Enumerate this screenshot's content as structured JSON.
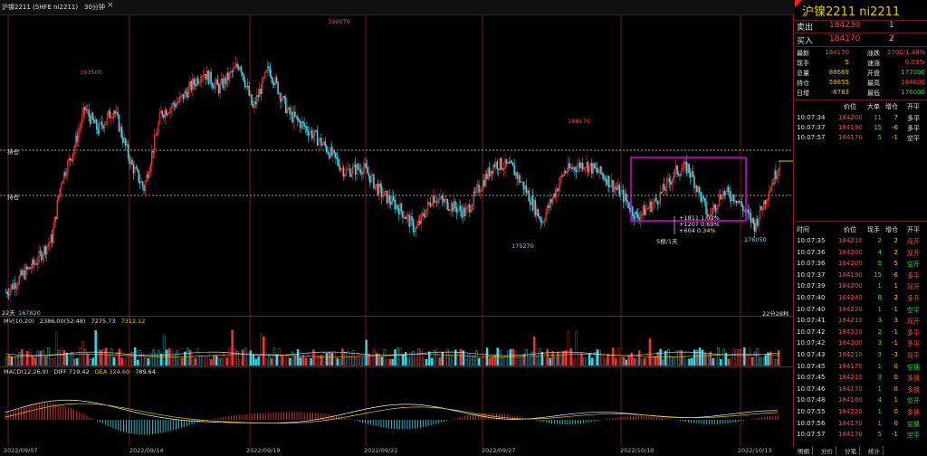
{
  "window": {
    "instrument": "沪镍2211 (SHFE ni2211)",
    "period": "30分钟",
    "close": "×"
  },
  "header": {
    "name": "沪镍2211 ni2211"
  },
  "quote": {
    "sell": {
      "label": "卖出",
      "price": "184230",
      "vol": "1"
    },
    "buy": {
      "label": "买入",
      "price": "184170",
      "vol": "2"
    },
    "stats": [
      {
        "l1": "最新",
        "v1": "184170",
        "l2": "涨跌",
        "v2": "2700/1.49%"
      },
      {
        "l1": "现手",
        "v1": "5",
        "l2": "速涨",
        "v2": "0.03%"
      },
      {
        "l1": "总量",
        "v1": "88669",
        "l2": "开盘",
        "v2": "177000"
      },
      {
        "l1": "持仓",
        "v1": "59855",
        "l2": "最高",
        "v2": "184600"
      },
      {
        "l1": "日增",
        "v1": "-8783",
        "l2": "最低",
        "v2": "176000"
      }
    ]
  },
  "big_orders": [
    {
      "time": "10:07:34",
      "price": "184200",
      "vol": "11",
      "chg": "7",
      "type": "多平"
    },
    {
      "time": "10:07:37",
      "price": "184190",
      "vol": "15",
      "chg": "-6",
      "type": "多平"
    },
    {
      "time": "10:07:57",
      "price": "184170",
      "vol": "5",
      "chg": "-1",
      "type": "空平"
    }
  ],
  "ticks_header": {
    "time": "时间",
    "price": "价位",
    "vol": "现手",
    "chg": "增仓",
    "type": "开平"
  },
  "big_header": {
    "price": "价位",
    "vol": "大单",
    "chg": "增仓",
    "type": "开平"
  },
  "ticks": [
    {
      "time": "10:07:35",
      "price": "184210",
      "vol": "2",
      "chg": "2",
      "type": "双开"
    },
    {
      "time": "10:07:36",
      "price": "184200",
      "vol": "4",
      "chg": "2",
      "type": "双开"
    },
    {
      "time": "10:07:36",
      "price": "184200",
      "vol": "5",
      "chg": "5",
      "type": "空开"
    },
    {
      "time": "10:07:37",
      "price": "184190",
      "vol": "15",
      "chg": "-6",
      "type": "多平"
    },
    {
      "time": "10:07:39",
      "price": "184200",
      "vol": "1",
      "chg": "1",
      "type": "双开"
    },
    {
      "time": "10:07:40",
      "price": "184240",
      "vol": "8",
      "chg": "2",
      "type": "多开"
    },
    {
      "time": "10:07:40",
      "price": "184220",
      "vol": "1",
      "chg": "-1",
      "type": "空平"
    },
    {
      "time": "10:07:41",
      "price": "184210",
      "vol": "3",
      "chg": "3",
      "type": "双开"
    },
    {
      "time": "10:07:42",
      "price": "184210",
      "vol": "2",
      "chg": "-1",
      "type": "多平"
    },
    {
      "time": "10:07:42",
      "price": "184200",
      "vol": "3",
      "chg": "-1",
      "type": "多平"
    },
    {
      "time": "10:07:43",
      "price": "184210",
      "vol": "3",
      "chg": "-3",
      "type": "双平"
    },
    {
      "time": "10:07:45",
      "price": "184170",
      "vol": "1",
      "chg": "0",
      "type": "空换"
    },
    {
      "time": "10:07:45",
      "price": "184210",
      "vol": "3",
      "chg": "0",
      "type": "多换"
    },
    {
      "time": "10:07:46",
      "price": "184170",
      "vol": "1",
      "chg": "0",
      "type": "多换"
    },
    {
      "time": "10:07:48",
      "price": "184160",
      "vol": "4",
      "chg": "1",
      "type": "空开"
    },
    {
      "time": "10:07:55",
      "price": "184220",
      "vol": "1",
      "chg": "0",
      "type": "多换"
    },
    {
      "time": "10:07:56",
      "price": "184170",
      "vol": "1",
      "chg": "0",
      "type": "空换"
    },
    {
      "time": "10:07:57",
      "price": "184170",
      "vol": "5",
      "chg": "-1",
      "type": "空平"
    }
  ],
  "tabs": [
    "明细",
    "分价",
    "分笔",
    "统计"
  ],
  "chart": {
    "price_labels": {
      "high": "199070",
      "left_high": "193500",
      "mid_high": "188170",
      "low1": "175270",
      "low2": "176050",
      "start_low": "167820"
    },
    "hlines": [
      {
        "label": "持仓"
      },
      {
        "label": "持仓"
      }
    ],
    "annot": [
      "+1811 1.03%",
      "+1207 0.69%",
      "+604 0.34%",
      "5根/1天"
    ],
    "corner_left": "22天",
    "corner_right": "22分28秒"
  },
  "chart_data": {
    "type": "candlestick",
    "series_price_range": [
      166000,
      201000
    ],
    "dates": [
      "2022/09/07",
      "2022/09/14",
      "2022/09/19",
      "2022/09/22",
      "2022/09/27",
      "2022/10/10",
      "2022/10/13"
    ]
  },
  "indicators": {
    "mv": {
      "label": "MV(10,20)",
      "v1": "2386.00(52:48)",
      "v2": "7275.73",
      "v3": "7312.12"
    },
    "macd": {
      "label": "MACD(12,26,9)",
      "diff": "DIFF 719.42",
      "dea": "DEA 324.60",
      "macd": "789.64"
    }
  },
  "colors": {
    "up": "#ff3030",
    "down": "#30e0f0",
    "box": "#e000e0",
    "grid": "#6a1b1b",
    "yellow": "#e6c800"
  }
}
